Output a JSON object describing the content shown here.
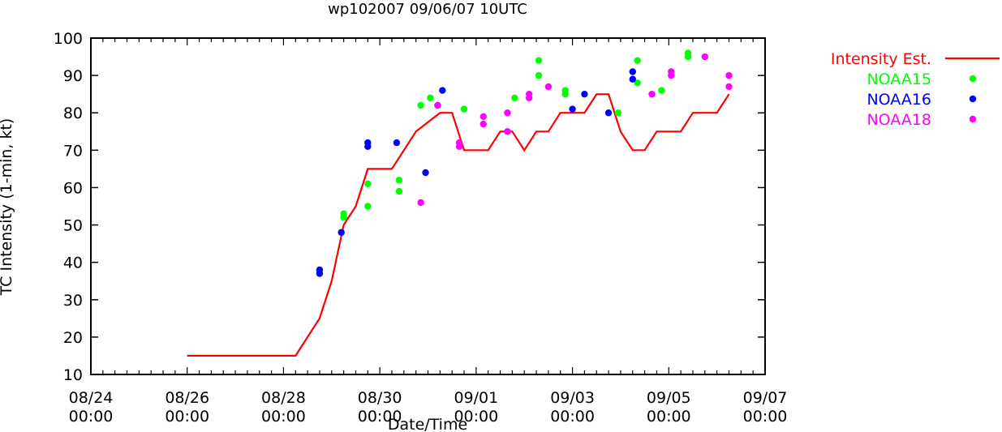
{
  "chart_data": {
    "type": "line+scatter",
    "title": "wp102007 09/06/07 10UTC",
    "xlabel": "Date/Time",
    "ylabel": "TC Intensity (1-min, kt)",
    "ylim": [
      10,
      100
    ],
    "yticks": [
      10,
      20,
      30,
      40,
      50,
      60,
      70,
      80,
      90,
      100
    ],
    "xlim_days": [
      0,
      14
    ],
    "xticks": [
      {
        "day": 0,
        "line1": "08/24",
        "line2": "00:00"
      },
      {
        "day": 2,
        "line1": "08/26",
        "line2": "00:00"
      },
      {
        "day": 4,
        "line1": "08/28",
        "line2": "00:00"
      },
      {
        "day": 6,
        "line1": "08/30",
        "line2": "00:00"
      },
      {
        "day": 8,
        "line1": "09/01",
        "line2": "00:00"
      },
      {
        "day": 10,
        "line1": "09/03",
        "line2": "00:00"
      },
      {
        "day": 12,
        "line1": "09/05",
        "line2": "00:00"
      },
      {
        "day": 14,
        "line1": "09/07",
        "line2": "00:00"
      }
    ],
    "x_units": "days since 08/24 00:00",
    "series": [
      {
        "name": "Intensity Est.",
        "kind": "line",
        "color": "#ff0000",
        "points": [
          [
            2.0,
            15
          ],
          [
            4.25,
            15
          ],
          [
            4.75,
            25
          ],
          [
            5.0,
            35
          ],
          [
            5.25,
            50
          ],
          [
            5.5,
            55
          ],
          [
            5.75,
            65
          ],
          [
            6.25,
            65
          ],
          [
            6.75,
            75
          ],
          [
            7.25,
            80
          ],
          [
            7.5,
            80
          ],
          [
            7.75,
            70
          ],
          [
            8.25,
            70
          ],
          [
            8.5,
            75
          ],
          [
            8.75,
            75
          ],
          [
            9.0,
            70
          ],
          [
            9.25,
            75
          ],
          [
            9.5,
            75
          ],
          [
            9.75,
            80
          ],
          [
            10.25,
            80
          ],
          [
            10.5,
            85
          ],
          [
            10.75,
            85
          ],
          [
            11.0,
            75
          ],
          [
            11.25,
            70
          ],
          [
            11.5,
            70
          ],
          [
            11.75,
            75
          ],
          [
            12.25,
            75
          ],
          [
            12.5,
            80
          ],
          [
            13.0,
            80
          ],
          [
            13.25,
            85
          ]
        ]
      },
      {
        "name": "NOAA15",
        "kind": "scatter",
        "color": "#00ff00",
        "points": [
          [
            5.25,
            53
          ],
          [
            5.25,
            52
          ],
          [
            5.75,
            61
          ],
          [
            5.75,
            55
          ],
          [
            6.4,
            62
          ],
          [
            6.4,
            59
          ],
          [
            6.85,
            82
          ],
          [
            7.05,
            84
          ],
          [
            7.75,
            81
          ],
          [
            8.8,
            84
          ],
          [
            9.3,
            94
          ],
          [
            9.3,
            90
          ],
          [
            9.85,
            86
          ],
          [
            9.85,
            85
          ],
          [
            10.95,
            80
          ],
          [
            11.35,
            94
          ],
          [
            11.35,
            88
          ],
          [
            11.85,
            86
          ],
          [
            12.4,
            96
          ],
          [
            12.4,
            95
          ]
        ]
      },
      {
        "name": "NOAA16",
        "kind": "scatter",
        "color": "#0000ff",
        "points": [
          [
            4.75,
            38
          ],
          [
            4.75,
            37
          ],
          [
            5.2,
            48
          ],
          [
            5.75,
            72
          ],
          [
            5.75,
            71
          ],
          [
            6.35,
            72
          ],
          [
            6.95,
            64
          ],
          [
            7.3,
            86
          ],
          [
            10.0,
            81
          ],
          [
            10.25,
            85
          ],
          [
            10.75,
            80
          ],
          [
            11.25,
            91
          ],
          [
            11.25,
            89
          ]
        ]
      },
      {
        "name": "NOAA18",
        "kind": "scatter",
        "color": "#ff00ff",
        "points": [
          [
            6.85,
            56
          ],
          [
            7.2,
            82
          ],
          [
            7.65,
            72
          ],
          [
            7.65,
            71
          ],
          [
            8.15,
            79
          ],
          [
            8.15,
            77
          ],
          [
            8.65,
            80
          ],
          [
            8.65,
            75
          ],
          [
            9.1,
            85
          ],
          [
            9.1,
            84
          ],
          [
            9.5,
            87
          ],
          [
            11.65,
            85
          ],
          [
            12.05,
            91
          ],
          [
            12.05,
            90
          ],
          [
            12.75,
            95
          ],
          [
            13.25,
            90
          ],
          [
            13.25,
            87
          ]
        ]
      }
    ],
    "legend_position": "top-right, outside plot"
  }
}
